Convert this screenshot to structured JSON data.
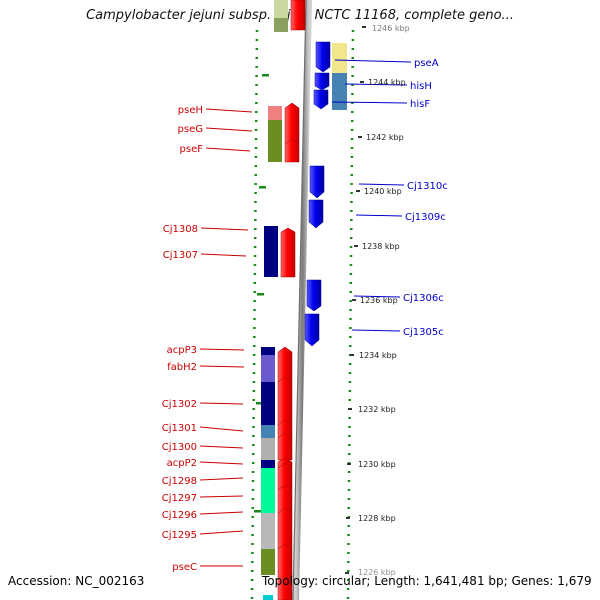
{
  "title": "Campylobacter jejuni subsp. jejuni NCTC 11168, complete geno...",
  "footer": {
    "accession": "Accession: NC_002163",
    "summary": "Topology: circular; Length: 1,641,481 bp; Genes: 1,679"
  },
  "scale_labels": [
    "1246 kbp",
    "1244 kbp",
    "1242 kbp",
    "1240 kbp",
    "1238 kbp",
    "1236 kbp",
    "1234 kbp",
    "1232 kbp",
    "1230 kbp",
    "1228 kbp",
    "1226 kbp"
  ],
  "left_genes": [
    "pseH",
    "pseG",
    "pseF",
    "Cj1308",
    "Cj1307",
    "acpP3",
    "fabH2",
    "Cj1302",
    "Cj1301",
    "Cj1300",
    "acpP2",
    "Cj1298",
    "Cj1297",
    "Cj1296",
    "Cj1295",
    "pseC"
  ],
  "right_genes": [
    "pseA",
    "hisH",
    "hisF",
    "Cj1310c",
    "Cj1309c",
    "Cj1306c",
    "Cj1305c"
  ],
  "colors": {
    "forward_gene": "#ff0000",
    "reverse_gene": "#0000ee",
    "gc_dots": "#1a8a1a",
    "backbone": "#999999"
  }
}
